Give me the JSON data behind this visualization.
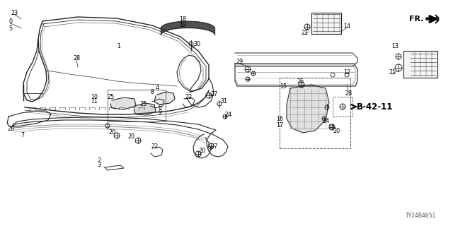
{
  "background_color": "#ffffff",
  "fig_width": 6.4,
  "fig_height": 3.2,
  "dpi": 100,
  "diagram_id": "TY24B4651",
  "reference_label": "B-42-11",
  "fr_label": "FR.",
  "line_color": "#222222",
  "text_color": "#000000",
  "label_fontsize": 5.8
}
